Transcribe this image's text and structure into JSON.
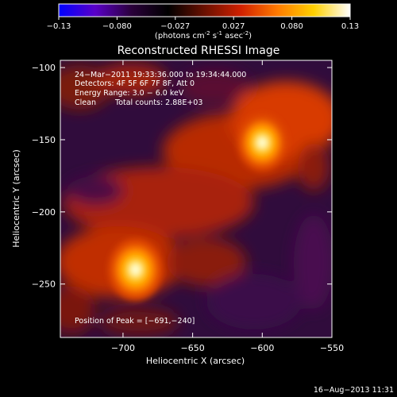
{
  "colorbar": {
    "ticks": [
      "-0.13",
      "-0.080",
      "-0.027",
      "0.027",
      "0.080",
      "0.13"
    ],
    "unit_main": "(photons cm",
    "unit_sup1": "-2",
    "unit_mid": " s",
    "unit_sup2": "-1",
    "unit_end": " asec",
    "unit_sup3": "-2",
    "unit_close": ")",
    "colors": [
      "#0000ff",
      "#5a00c8",
      "#2a003a",
      "#000000",
      "#6a1000",
      "#d02000",
      "#ff7a00",
      "#ffd000",
      "#ffffff"
    ]
  },
  "chart_data": {
    "type": "heatmap",
    "title": "Reconstructed RHESSI Image",
    "xlabel": "Heliocentric X (arcsec)",
    "ylabel": "Heliocentric Y (arcsec)",
    "xlim": [
      -745,
      -550
    ],
    "ylim": [
      -287,
      -95
    ],
    "x_ticks": [
      -700,
      -650,
      -600,
      -550
    ],
    "x_tick_labels": [
      "−700",
      "−650",
      "−600",
      "−550"
    ],
    "y_ticks": [
      -100,
      -150,
      -200,
      -250
    ],
    "y_tick_labels": [
      "−100",
      "−150",
      "−200",
      "−250"
    ],
    "value_range": [
      -0.13,
      0.13
    ],
    "sources": [
      {
        "x": -691,
        "y": -240,
        "peak": 0.13
      },
      {
        "x": -600,
        "y": -152,
        "peak": 0.12
      }
    ],
    "annotations": {
      "time": "24−Mar−2011 19:33:36.000 to 19:34:44.000",
      "detectors": "Detectors: 4F 5F 6F 7F 8F, Att 0",
      "energy": "Energy Range: 3.0 − 6.0 keV",
      "method": "Clean",
      "counts": "Total counts: 2.88E+03",
      "peak": "Position of Peak = [−691,−240]"
    }
  },
  "footer": {
    "date": "16−Aug−2013 11:31"
  }
}
